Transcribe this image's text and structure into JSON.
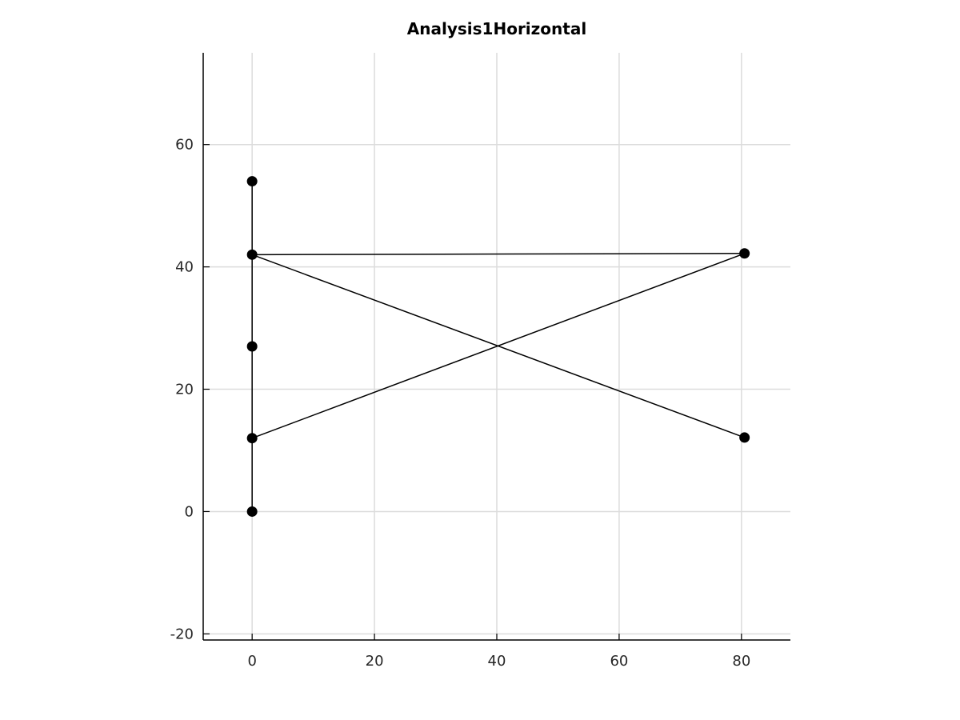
{
  "chart_data": {
    "type": "line",
    "title": "Analysis1Horizontal",
    "xlabel": "",
    "ylabel": "",
    "xlim": [
      -8,
      88
    ],
    "ylim": [
      -21,
      75
    ],
    "xticks": [
      0,
      20,
      40,
      60,
      80
    ],
    "yticks": [
      -20,
      0,
      20,
      40,
      60
    ],
    "xtick_labels": [
      "0",
      "20",
      "40",
      "60",
      "80"
    ],
    "ytick_labels": [
      "-20",
      "0",
      "20",
      "40",
      "60"
    ],
    "grid": true,
    "legend": "none",
    "segments": [
      {
        "x": [
          0,
          0
        ],
        "y": [
          0,
          12
        ]
      },
      {
        "x": [
          0,
          0
        ],
        "y": [
          12,
          27
        ]
      },
      {
        "x": [
          0,
          0
        ],
        "y": [
          27,
          42
        ]
      },
      {
        "x": [
          0,
          0
        ],
        "y": [
          42,
          54
        ]
      },
      {
        "x": [
          0,
          80.5
        ],
        "y": [
          42,
          42.2
        ]
      },
      {
        "x": [
          0,
          80.5
        ],
        "y": [
          42,
          12.1
        ]
      },
      {
        "x": [
          0,
          80.5
        ],
        "y": [
          12,
          42.2
        ]
      }
    ],
    "points": [
      {
        "x": 0,
        "y": 0
      },
      {
        "x": 0,
        "y": 12
      },
      {
        "x": 0,
        "y": 27
      },
      {
        "x": 0,
        "y": 42
      },
      {
        "x": 0,
        "y": 54
      },
      {
        "x": 80.5,
        "y": 42.2
      },
      {
        "x": 80.5,
        "y": 12.1
      }
    ],
    "colors": {
      "line": "#000000",
      "marker": "#000000",
      "grid": "#dcdcdc",
      "axis": "#000000",
      "text": "#262626"
    }
  }
}
